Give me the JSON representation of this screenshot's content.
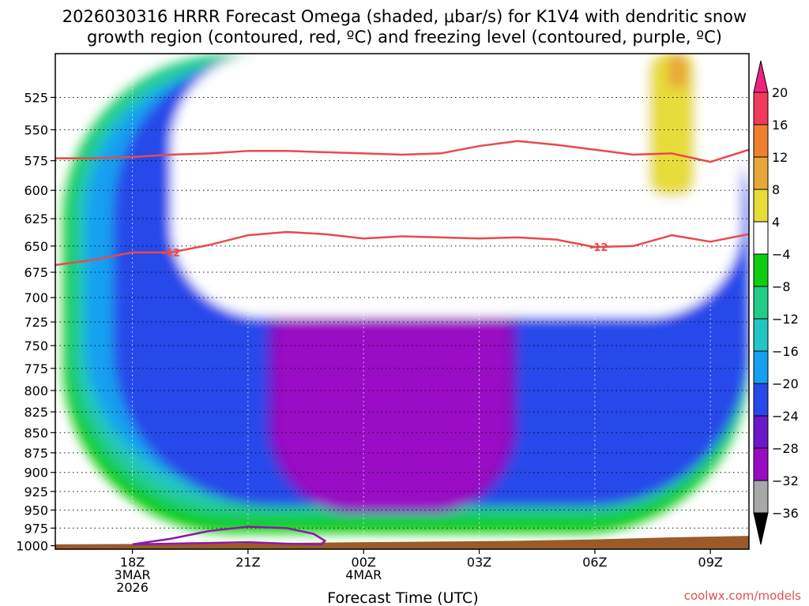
{
  "title_line1": "2026030316 HRRR Forecast Omega (shaded, μbar/s) for K1V4 with dendritic snow",
  "title_line2": "growth region (contoured, red, ºC) and freezing level (contoured, purple, ºC)",
  "credit": "coolwx.com/models",
  "chart_data": {
    "type": "heatmap",
    "title": "2026030316 HRRR Forecast Omega (shaded, μbar/s) for K1V4 with dendritic snow growth region (contoured, red, ºC) and freezing level (contoured, purple, ºC)",
    "xlabel": "Forecast Time (UTC)",
    "ylabel": "",
    "x_range": [
      16,
      34
    ],
    "x_ticks": [
      {
        "value": 18,
        "lines": [
          "18Z",
          "3MAR",
          "2026"
        ]
      },
      {
        "value": 21,
        "lines": [
          "21Z"
        ]
      },
      {
        "value": 24,
        "lines": [
          "00Z",
          "4MAR"
        ]
      },
      {
        "value": 27,
        "lines": [
          "03Z"
        ]
      },
      {
        "value": 30,
        "lines": [
          "06Z"
        ]
      },
      {
        "value": 33,
        "lines": [
          "09Z"
        ]
      }
    ],
    "y_axis": {
      "unit": "hPa",
      "inverted": true,
      "range": [
        1005,
        493
      ]
    },
    "y_ticks": [
      525,
      550,
      575,
      600,
      625,
      650,
      675,
      700,
      725,
      750,
      775,
      800,
      825,
      850,
      875,
      900,
      925,
      950,
      975,
      1000
    ],
    "grid": true,
    "colorbar": {
      "position": "right",
      "labels": [
        "20",
        "16",
        "12",
        "8",
        "4",
        "−4",
        "−8",
        "−12",
        "−16",
        "−20",
        "−24",
        "−28",
        "−32",
        "−36"
      ],
      "bins": [
        {
          "lo": 16,
          "hi": 20,
          "color": "#f23a5a"
        },
        {
          "lo": 12,
          "hi": 16,
          "color": "#f08030"
        },
        {
          "lo": 8,
          "hi": 12,
          "color": "#e8a838"
        },
        {
          "lo": 4,
          "hi": 8,
          "color": "#e8dc3a"
        },
        {
          "lo": -4,
          "hi": 4,
          "color": "#ffffff"
        },
        {
          "lo": -8,
          "hi": -4,
          "color": "#11cc11"
        },
        {
          "lo": -12,
          "hi": -8,
          "color": "#22cc88"
        },
        {
          "lo": -16,
          "hi": -12,
          "color": "#22c4c4"
        },
        {
          "lo": -20,
          "hi": -16,
          "color": "#18a0f0"
        },
        {
          "lo": -24,
          "hi": -20,
          "color": "#2848ea"
        },
        {
          "lo": -28,
          "hi": -24,
          "color": "#6a18c8"
        },
        {
          "lo": -32,
          "hi": -28,
          "color": "#9a0cc4"
        },
        {
          "lo": -36,
          "hi": -32,
          "color": "#a8a8a8"
        }
      ],
      "top_arrow_color": "#ee2280",
      "bottom_arrow_color": "#000000"
    },
    "omega_fields": [
      {
        "value": -6,
        "color": "#11cc11",
        "t_range": [
          16.2,
          34
        ],
        "p_range": [
          493,
          982
        ]
      },
      {
        "value": -10,
        "color": "#22cc88",
        "t_range": [
          16.4,
          34
        ],
        "p_range": [
          493,
          960
        ]
      },
      {
        "value": -14,
        "color": "#22c4c4",
        "t_range": [
          16.6,
          34
        ],
        "p_range": [
          500,
          940
        ]
      },
      {
        "value": -18,
        "color": "#18a0f0",
        "t_range": [
          16.8,
          33
        ],
        "p_range": [
          505,
          920
        ]
      },
      {
        "value": -22,
        "color": "#2848ea",
        "t_range": [
          17.5,
          34
        ],
        "p_range": [
          493,
          945
        ]
      },
      {
        "value": -26,
        "color": "#6a18c8",
        "t_range": [
          21.5,
          28
        ],
        "p_range": [
          493,
          955
        ]
      },
      {
        "value": -30,
        "color": "#9a0cc4",
        "t_range": [
          21.7,
          27.8
        ],
        "p_range": [
          665,
          950
        ]
      },
      {
        "value": 2,
        "color": "#ffffff",
        "t_range": [
          19.0,
          33.8
        ],
        "p_range": [
          493,
          720
        ]
      },
      {
        "value": 6,
        "color": "#e8dc3a",
        "t_range": [
          31.4,
          32.6
        ],
        "p_range": [
          493,
          605
        ]
      },
      {
        "value": 10,
        "color": "#e8a838",
        "t_range": [
          31.9,
          32.4
        ],
        "p_range": [
          493,
          518
        ]
      }
    ],
    "dgz_contours": [
      {
        "label": "",
        "color": "#e84a4a",
        "x": [
          16,
          17,
          18,
          19,
          20,
          21,
          22,
          23,
          24,
          25,
          26,
          27,
          28,
          29,
          30,
          31,
          32,
          33,
          34
        ],
        "y": [
          573,
          573,
          572,
          570,
          569,
          567,
          567,
          568,
          569,
          570,
          569,
          563,
          559,
          562,
          566,
          570,
          569,
          576,
          566
        ]
      },
      {
        "label": "-12",
        "color": "#e84a4a",
        "x": [
          16,
          17,
          18,
          19,
          20,
          21,
          22,
          23,
          24,
          25,
          26,
          27,
          28,
          29,
          30,
          31,
          32,
          33,
          34
        ],
        "y": [
          668,
          663,
          656,
          656,
          649,
          640,
          637,
          639,
          643,
          641,
          642,
          643,
          642,
          644,
          651,
          650,
          640,
          646,
          639
        ]
      }
    ],
    "freezing_level": [
      {
        "label": "",
        "color": "#8a1aa8",
        "x": [
          18.0,
          19.0,
          20.0,
          21.0,
          22.0,
          22.7,
          23.0,
          22.9,
          22.0,
          21.0,
          20.0,
          19.0,
          18.0
        ],
        "y": [
          998,
          990,
          979,
          973,
          975,
          983,
          993,
          998,
          997,
          995,
          996,
          997,
          998
        ]
      }
    ],
    "terrain": {
      "color": "#9b5a2a",
      "x": [
        16,
        20,
        24,
        28,
        30,
        32,
        34
      ],
      "p": [
        998,
        997,
        995,
        993,
        991,
        988,
        986
      ]
    }
  }
}
